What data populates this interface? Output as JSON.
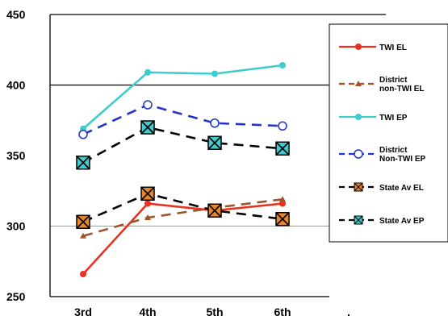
{
  "chart_data": {
    "type": "line",
    "categories": [
      "3rd",
      "4th",
      "5th",
      "6th"
    ],
    "extra_category_label": ".",
    "ylim": [
      250,
      450
    ],
    "yticks": [
      250,
      300,
      350,
      400,
      450
    ],
    "gridlines": [
      300,
      400,
      450
    ],
    "legend_position": "right",
    "series": [
      {
        "name": "TWI EL",
        "values": [
          266,
          316,
          311,
          316
        ],
        "color": "#e8321e",
        "dash": "solid",
        "marker": "dot"
      },
      {
        "name": "District non-TWI EL",
        "values": [
          293,
          306,
          313,
          319
        ],
        "color": "#a0522d",
        "dash": "dash",
        "marker": "triangle"
      },
      {
        "name": "TWI EP",
        "values": [
          369,
          409,
          408,
          414
        ],
        "color": "#40cccc",
        "dash": "solid",
        "marker": "dot"
      },
      {
        "name": "District Non-TWI EP",
        "values": [
          365,
          386,
          373,
          371
        ],
        "color": "#2233cc",
        "dash": "dash",
        "marker": "circle"
      },
      {
        "name": "State Av EL",
        "values": [
          303,
          323,
          311,
          305
        ],
        "color": "#000000",
        "dash": "dash",
        "marker": "box-x-orange"
      },
      {
        "name": "State Av EP",
        "values": [
          345,
          370,
          359,
          355
        ],
        "color": "#000000",
        "dash": "dash",
        "marker": "box-x-teal"
      }
    ],
    "legend_labels": [
      [
        "TWI EL"
      ],
      [
        "District",
        "non-TWI EL"
      ],
      [
        "TWI EP"
      ],
      [
        "District",
        "Non-TWI EP"
      ],
      [
        "State Av EL"
      ],
      [
        "State Av EP"
      ]
    ]
  }
}
